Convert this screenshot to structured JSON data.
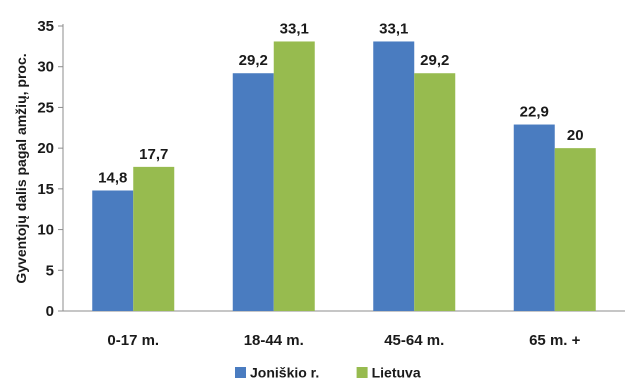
{
  "chart_data": {
    "type": "bar",
    "title": "",
    "xlabel": "",
    "ylabel": "Gyventojų dalis pagal amžių, proc.",
    "categories": [
      "0-17 m.",
      "18-44 m.",
      "45-64 m.",
      "65 m. +"
    ],
    "series": [
      {
        "name": "Joniškio r.",
        "values": [
          14.8,
          29.2,
          33.1,
          22.9
        ],
        "labels": [
          "14,8",
          "29,2",
          "33,1",
          "22,9"
        ],
        "color": "#4a7cc0"
      },
      {
        "name": "Lietuva",
        "values": [
          17.7,
          33.1,
          29.2,
          20
        ],
        "labels": [
          "17,7",
          "33,1",
          "29,2",
          "20"
        ],
        "color": "#97bb4f"
      }
    ],
    "ylim": [
      0,
      35
    ],
    "yticks": [
      0,
      5,
      10,
      15,
      20,
      25,
      30,
      35
    ],
    "grid": false,
    "legend": "bottom"
  }
}
